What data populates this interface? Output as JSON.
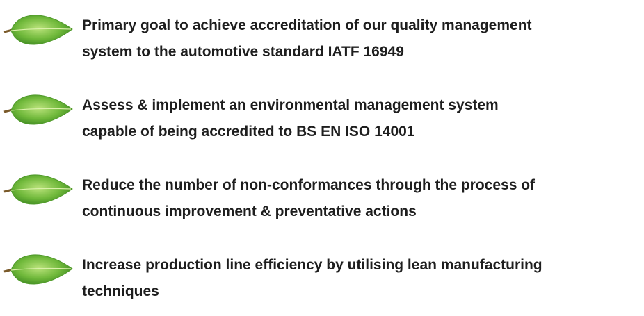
{
  "items": [
    {
      "lines": [
        "Primary goal to achieve accreditation of our quality management",
        "system to the automotive standard IATF 16949"
      ]
    },
    {
      "lines": [
        "Assess & implement an environmental management system",
        "capable of being accredited to BS EN ISO 14001"
      ]
    },
    {
      "lines": [
        "Reduce the number of non-conformances through the process of",
        "continuous improvement & preventative actions"
      ]
    },
    {
      "lines": [
        "Increase production line efficiency by utilising lean manufacturing",
        "techniques"
      ]
    }
  ]
}
